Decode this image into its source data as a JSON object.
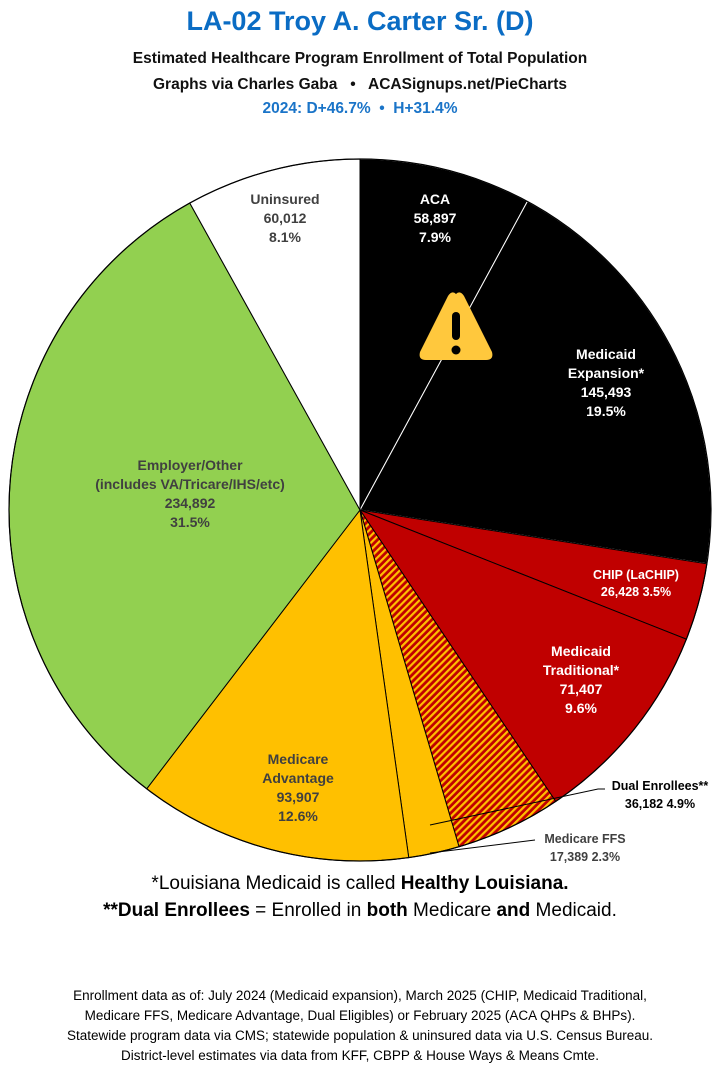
{
  "header": {
    "title": "LA-02 Troy A. Carter Sr. (D)",
    "subtitle": "Estimated Healthcare Program Enrollment of Total Population",
    "credit": "Graphs via Charles Gaba   •   ACASignups.net/PieCharts",
    "partisan": "2024: D+46.7%  •  H+31.4%"
  },
  "chart_data": {
    "type": "pie",
    "start": "12 o'clock, clockwise",
    "slices": [
      {
        "label": "ACA",
        "value": 58897,
        "value_text": "58,897",
        "pct": "7.9%",
        "color": "#000000"
      },
      {
        "label": "Medicaid Expansion*",
        "label_lines": [
          "Medicaid",
          "Expansion*"
        ],
        "value": 145493,
        "value_text": "145,493",
        "pct": "19.5%",
        "color": "#000000"
      },
      {
        "label": "CHIP (LaCHIP)",
        "value": 26428,
        "value_text": "26,428",
        "pct": "3.5%",
        "color": "#c00000"
      },
      {
        "label": "Medicaid Traditional*",
        "label_lines": [
          "Medicaid",
          "Traditional*"
        ],
        "value": 71407,
        "value_text": "71,407",
        "pct": "9.6%",
        "color": "#c00000"
      },
      {
        "label": "Dual Enrollees**",
        "value": 36182,
        "value_text": "36,182",
        "pct": "4.9%",
        "color": "#c00000",
        "hatch": "#ffc000"
      },
      {
        "label": "Medicare FFS",
        "value": 17389,
        "value_text": "17,389",
        "pct": "2.3%",
        "color": "#ffc000"
      },
      {
        "label": "Medicare Advantage",
        "label_lines": [
          "Medicare",
          "Advantage"
        ],
        "value": 93907,
        "value_text": "93,907",
        "pct": "12.6%",
        "color": "#ffc000"
      },
      {
        "label": "Employer/Other (includes VA/Tricare/IHS/etc)",
        "label_lines": [
          "Employer/Other",
          "(includes VA/Tricare/IHS/etc)"
        ],
        "value": 234892,
        "value_text": "234,892",
        "pct": "31.5%",
        "color": "#92d050"
      },
      {
        "label": "Uninsured",
        "value": 60012,
        "value_text": "60,012",
        "pct": "8.1%",
        "color": "#ffffff"
      }
    ],
    "warning_icon": "warning-triangle-icon"
  },
  "notes": {
    "line1": {
      "pre": "*Louisiana Medicaid is called ",
      "bold": "Healthy Louisiana."
    },
    "line2": {
      "b1": "**Dual Enrollees",
      "t1": " = Enrolled in ",
      "b2": "both",
      "t2": " Medicare ",
      "b3": "and",
      "t3": " Medicaid."
    }
  },
  "footer": [
    "Enrollment data as of: July 2024 (Medicaid expansion), March 2025 (CHIP, Medicaid Traditional,",
    "Medicare FFS, Medicare Advantage, Dual Eligibles) or February 2025 (ACA QHPs & BHPs).",
    "Statewide program data via CMS; statewide population & uninsured data via U.S. Census Bureau.",
    "District-level estimates via data from KFF, CBPP & House Ways & Means Cmte."
  ]
}
